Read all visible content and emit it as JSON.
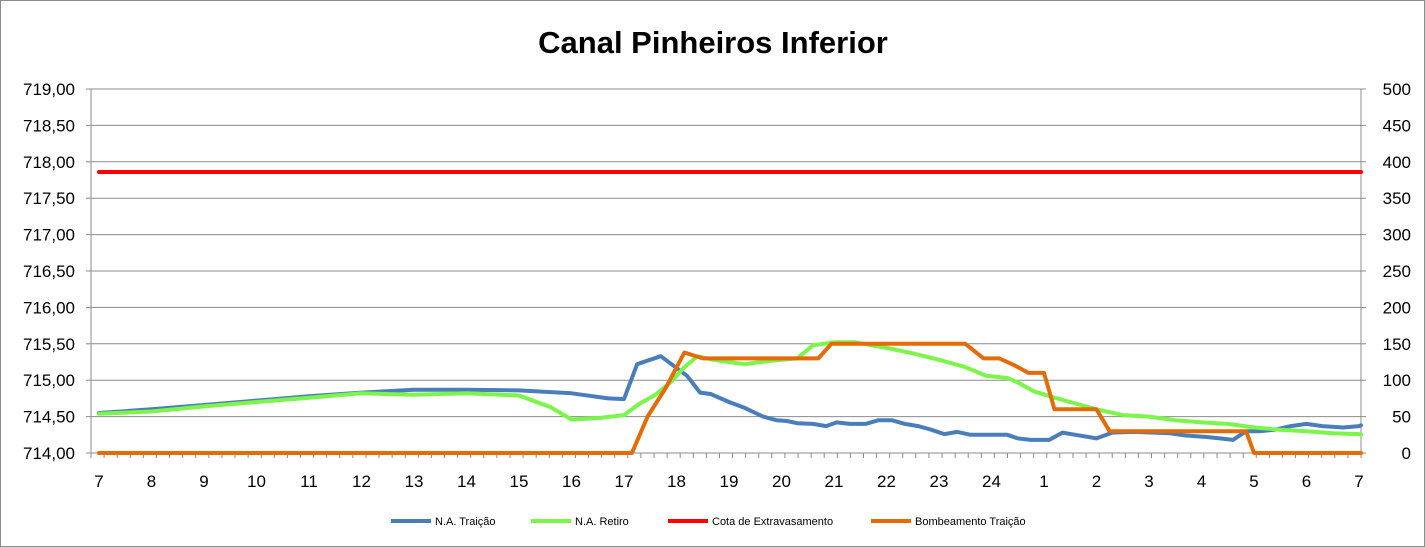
{
  "chart_data": {
    "type": "line",
    "title": "Canal Pinheiros Inferior",
    "x_tick_labels": [
      "7",
      "8",
      "9",
      "10",
      "11",
      "12",
      "13",
      "14",
      "15",
      "16",
      "17",
      "18",
      "19",
      "20",
      "21",
      "22",
      "23",
      "24",
      "1",
      "2",
      "3",
      "4",
      "5",
      "6",
      "7"
    ],
    "y_left": {
      "range": [
        714.0,
        719.0
      ],
      "tick_values": [
        714.0,
        714.5,
        715.0,
        715.5,
        716.0,
        716.5,
        717.0,
        717.5,
        718.0,
        718.5,
        719.0
      ],
      "tick_labels": [
        "714,00",
        "714,50",
        "715,00",
        "715,50",
        "716,00",
        "716,50",
        "717,00",
        "717,50",
        "718,00",
        "718,50",
        "719,00"
      ]
    },
    "y_right": {
      "range": [
        0,
        500
      ],
      "tick_values": [
        0,
        50,
        100,
        150,
        200,
        250,
        300,
        350,
        400,
        450,
        500
      ],
      "tick_labels": [
        "0",
        "50",
        "100",
        "150",
        "200",
        "250",
        "300",
        "350",
        "400",
        "450",
        "500"
      ]
    },
    "grid": true,
    "legend_position": "bottom",
    "series": [
      {
        "name": "N.A. Traição",
        "axis": "left",
        "color": "#4a7ebb",
        "points": [
          [
            0,
            714.55
          ],
          [
            1,
            714.6
          ],
          [
            2,
            714.66
          ],
          [
            3,
            714.72
          ],
          [
            4,
            714.78
          ],
          [
            5,
            714.83
          ],
          [
            6,
            714.87
          ],
          [
            7,
            714.87
          ],
          [
            8,
            714.86
          ],
          [
            9,
            714.82
          ],
          [
            9.7,
            714.75
          ],
          [
            10.0,
            714.74
          ],
          [
            10.25,
            715.22
          ],
          [
            10.7,
            715.33
          ],
          [
            11.2,
            715.06
          ],
          [
            11.45,
            714.83
          ],
          [
            11.65,
            714.81
          ],
          [
            12.0,
            714.7
          ],
          [
            12.3,
            714.62
          ],
          [
            12.65,
            714.5
          ],
          [
            12.9,
            714.45
          ],
          [
            13.1,
            714.44
          ],
          [
            13.3,
            714.41
          ],
          [
            13.6,
            714.4
          ],
          [
            13.85,
            714.37
          ],
          [
            14.05,
            714.42
          ],
          [
            14.3,
            714.4
          ],
          [
            14.6,
            714.4
          ],
          [
            14.85,
            714.45
          ],
          [
            15.1,
            714.45
          ],
          [
            15.35,
            714.4
          ],
          [
            15.6,
            714.37
          ],
          [
            15.85,
            714.32
          ],
          [
            16.1,
            714.26
          ],
          [
            16.35,
            714.29
          ],
          [
            16.6,
            714.25
          ],
          [
            17.0,
            714.25
          ],
          [
            17.3,
            714.25
          ],
          [
            17.5,
            714.2
          ],
          [
            17.75,
            714.18
          ],
          [
            18.1,
            714.18
          ],
          [
            18.35,
            714.28
          ],
          [
            18.6,
            714.25
          ],
          [
            19.0,
            714.2
          ],
          [
            19.3,
            714.28
          ],
          [
            19.7,
            714.29
          ],
          [
            20.1,
            714.28
          ],
          [
            20.4,
            714.27
          ],
          [
            20.7,
            714.24
          ],
          [
            21.1,
            714.22
          ],
          [
            21.35,
            714.2
          ],
          [
            21.6,
            714.18
          ],
          [
            21.85,
            714.3
          ],
          [
            22.1,
            714.3
          ],
          [
            22.4,
            714.32
          ],
          [
            22.7,
            714.37
          ],
          [
            23.0,
            714.4
          ],
          [
            23.3,
            714.37
          ],
          [
            23.7,
            714.35
          ],
          [
            24,
            714.37
          ],
          [
            24.3,
            714.38
          ]
        ]
      },
      {
        "name": "N.A. Retiro",
        "axis": "left",
        "color": "#7cf54a",
        "points": [
          [
            0,
            714.54
          ],
          [
            1,
            714.57
          ],
          [
            2,
            714.64
          ],
          [
            3,
            714.7
          ],
          [
            4,
            714.76
          ],
          [
            5,
            714.82
          ],
          [
            6,
            714.8
          ],
          [
            7,
            714.82
          ],
          [
            8,
            714.79
          ],
          [
            8.6,
            714.63
          ],
          [
            9,
            714.46
          ],
          [
            9.5,
            714.48
          ],
          [
            10.0,
            714.52
          ],
          [
            10.3,
            714.68
          ],
          [
            10.6,
            714.8
          ],
          [
            10.9,
            714.98
          ],
          [
            11.15,
            715.18
          ],
          [
            11.4,
            715.33
          ],
          [
            11.7,
            715.28
          ],
          [
            12.0,
            715.25
          ],
          [
            12.3,
            715.22
          ],
          [
            12.6,
            715.25
          ],
          [
            13.0,
            715.28
          ],
          [
            13.3,
            715.3
          ],
          [
            13.6,
            715.48
          ],
          [
            14.0,
            715.52
          ],
          [
            14.4,
            715.52
          ],
          [
            15.1,
            715.43
          ],
          [
            15.5,
            715.37
          ],
          [
            16.0,
            715.28
          ],
          [
            16.5,
            715.18
          ],
          [
            16.9,
            715.06
          ],
          [
            17.3,
            715.03
          ],
          [
            17.5,
            714.97
          ],
          [
            17.8,
            714.85
          ],
          [
            18.2,
            714.76
          ],
          [
            18.6,
            714.68
          ],
          [
            19.0,
            714.6
          ],
          [
            19.5,
            714.52
          ],
          [
            20.0,
            714.5
          ],
          [
            20.5,
            714.45
          ],
          [
            21.0,
            714.42
          ],
          [
            21.5,
            714.4
          ],
          [
            22.0,
            714.35
          ],
          [
            22.5,
            714.32
          ],
          [
            23.0,
            714.3
          ],
          [
            23.5,
            714.27
          ],
          [
            24,
            714.26
          ],
          [
            24.3,
            714.25
          ]
        ]
      },
      {
        "name": "Cota de Extravasamento",
        "axis": "left",
        "color": "#ff0000",
        "points": [
          [
            0,
            717.86
          ],
          [
            24.3,
            717.86
          ]
        ]
      },
      {
        "name": "Bombeamento Traição",
        "axis": "right",
        "color": "#e36c09",
        "points": [
          [
            0,
            0
          ],
          [
            10.15,
            0
          ],
          [
            10.45,
            50
          ],
          [
            10.8,
            90
          ],
          [
            11.15,
            138
          ],
          [
            11.5,
            130
          ],
          [
            12,
            130
          ],
          [
            13,
            130
          ],
          [
            13.7,
            130
          ],
          [
            13.95,
            150
          ],
          [
            15,
            150
          ],
          [
            16.5,
            150
          ],
          [
            16.85,
            130
          ],
          [
            17.15,
            130
          ],
          [
            17.45,
            120
          ],
          [
            17.7,
            110
          ],
          [
            18.0,
            110
          ],
          [
            18.2,
            60
          ],
          [
            19.0,
            60
          ],
          [
            19.25,
            30
          ],
          [
            21,
            30
          ],
          [
            21.85,
            30
          ],
          [
            22.0,
            0
          ],
          [
            24.3,
            0
          ]
        ]
      }
    ]
  }
}
